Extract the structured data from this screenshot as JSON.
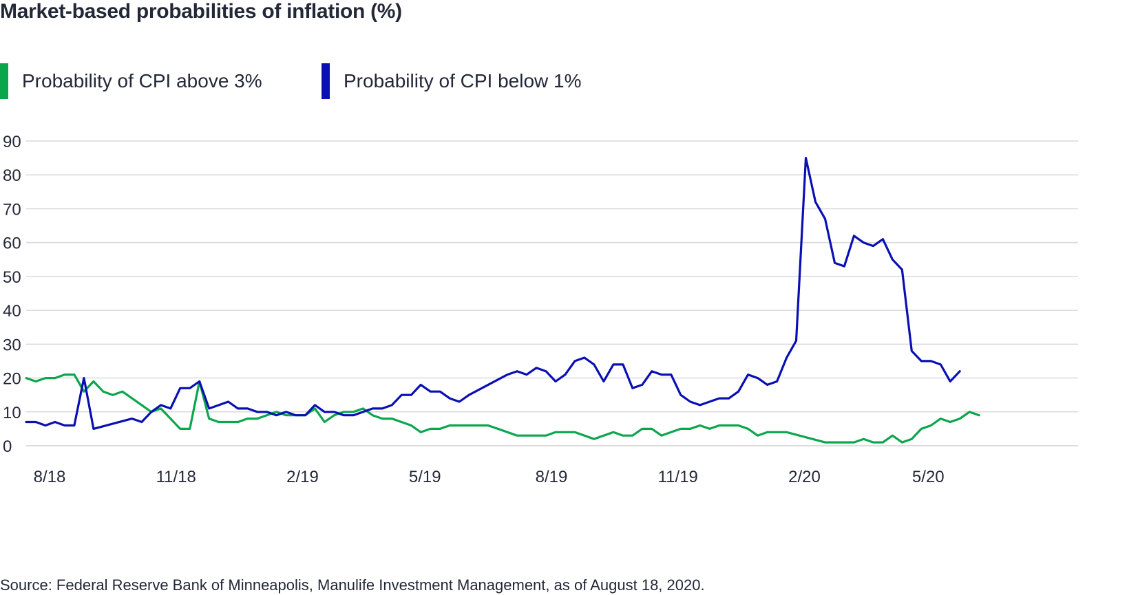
{
  "title": "Market-based probabilities of inflation (%)",
  "source": "Source: Federal Reserve Bank of Minneapolis, Manulife Investment Management, as of August 18, 2020.",
  "colors": {
    "above": "#0aa64c",
    "below": "#0a0fb3",
    "grid": "#d9d9d9",
    "text": "#232838"
  },
  "legend": [
    {
      "label": "Probability of CPI above 3%",
      "color": "#0aa64c"
    },
    {
      "label": "Probability of CPI below 1%",
      "color": "#0a0fb3"
    }
  ],
  "chart_data": {
    "type": "line",
    "title": "Market-based probabilities of inflation (%)",
    "xlabel": "",
    "ylabel": "",
    "ylim": [
      0,
      90
    ],
    "yticks": [
      0,
      10,
      20,
      30,
      40,
      50,
      60,
      70,
      80,
      90
    ],
    "xlim": [
      "2018-07-15",
      "2020-08-18"
    ],
    "xticks": [
      {
        "label": "8/18",
        "date": "2018-08-01"
      },
      {
        "label": "11/18",
        "date": "2018-11-01"
      },
      {
        "label": "2/19",
        "date": "2019-02-01"
      },
      {
        "label": "5/19",
        "date": "2019-05-01"
      },
      {
        "label": "8/19",
        "date": "2019-08-01"
      },
      {
        "label": "11/19",
        "date": "2019-11-01"
      },
      {
        "label": "2/20",
        "date": "2020-02-01"
      },
      {
        "label": "5/20",
        "date": "2020-05-01"
      }
    ],
    "grid": true,
    "legend_position": "top-left",
    "series": [
      {
        "name": "Probability of CPI above 3%",
        "color": "#0aa64c",
        "points": [
          [
            "2018-07-15",
            20
          ],
          [
            "2018-07-22",
            19
          ],
          [
            "2018-07-29",
            20
          ],
          [
            "2018-08-05",
            20
          ],
          [
            "2018-08-12",
            21
          ],
          [
            "2018-08-19",
            21
          ],
          [
            "2018-08-26",
            16
          ],
          [
            "2018-09-02",
            19
          ],
          [
            "2018-09-09",
            16
          ],
          [
            "2018-09-16",
            15
          ],
          [
            "2018-09-23",
            16
          ],
          [
            "2018-10-14",
            10
          ],
          [
            "2018-10-21",
            11
          ],
          [
            "2018-11-04",
            5
          ],
          [
            "2018-11-11",
            5
          ],
          [
            "2018-11-18",
            19
          ],
          [
            "2018-11-25",
            8
          ],
          [
            "2018-12-02",
            7
          ],
          [
            "2018-12-16",
            7
          ],
          [
            "2018-12-23",
            8
          ],
          [
            "2018-12-30",
            8
          ],
          [
            "2019-01-06",
            9
          ],
          [
            "2019-01-13",
            10
          ],
          [
            "2019-01-20",
            9
          ],
          [
            "2019-01-27",
            9
          ],
          [
            "2019-02-03",
            9
          ],
          [
            "2019-02-10",
            11
          ],
          [
            "2019-02-17",
            7
          ],
          [
            "2019-02-24",
            9
          ],
          [
            "2019-03-03",
            10
          ],
          [
            "2019-03-10",
            10
          ],
          [
            "2019-03-17",
            11
          ],
          [
            "2019-03-24",
            9
          ],
          [
            "2019-03-31",
            8
          ],
          [
            "2019-04-07",
            8
          ],
          [
            "2019-04-21",
            6
          ],
          [
            "2019-04-28",
            4
          ],
          [
            "2019-05-05",
            5
          ],
          [
            "2019-05-12",
            5
          ],
          [
            "2019-05-19",
            6
          ],
          [
            "2019-06-16",
            6
          ],
          [
            "2019-06-30",
            4
          ],
          [
            "2019-07-07",
            3
          ],
          [
            "2019-07-28",
            3
          ],
          [
            "2019-08-04",
            4
          ],
          [
            "2019-08-18",
            4
          ],
          [
            "2019-09-01",
            2
          ],
          [
            "2019-09-15",
            4
          ],
          [
            "2019-09-22",
            3
          ],
          [
            "2019-09-29",
            3
          ],
          [
            "2019-10-06",
            5
          ],
          [
            "2019-10-13",
            5
          ],
          [
            "2019-10-20",
            3
          ],
          [
            "2019-10-27",
            4
          ],
          [
            "2019-11-03",
            5
          ],
          [
            "2019-11-10",
            5
          ],
          [
            "2019-11-17",
            6
          ],
          [
            "2019-11-24",
            5
          ],
          [
            "2019-12-01",
            6
          ],
          [
            "2019-12-15",
            6
          ],
          [
            "2019-12-22",
            5
          ],
          [
            "2019-12-29",
            3
          ],
          [
            "2020-01-05",
            4
          ],
          [
            "2020-01-19",
            4
          ],
          [
            "2020-02-16",
            1
          ],
          [
            "2020-03-08",
            1
          ],
          [
            "2020-03-15",
            2
          ],
          [
            "2020-03-22",
            1
          ],
          [
            "2020-03-29",
            1
          ],
          [
            "2020-04-05",
            3
          ],
          [
            "2020-04-12",
            1
          ],
          [
            "2020-04-19",
            2
          ],
          [
            "2020-04-26",
            5
          ],
          [
            "2020-05-03",
            6
          ],
          [
            "2020-05-10",
            8
          ],
          [
            "2020-05-17",
            7
          ],
          [
            "2020-05-24",
            8
          ],
          [
            "2020-05-31",
            10
          ],
          [
            "2020-06-07",
            9
          ]
        ]
      },
      {
        "name": "Probability of CPI below 1%",
        "color": "#0a0fb3",
        "points": [
          [
            "2018-07-15",
            7
          ],
          [
            "2018-07-22",
            7
          ],
          [
            "2018-07-29",
            6
          ],
          [
            "2018-08-05",
            7
          ],
          [
            "2018-08-12",
            6
          ],
          [
            "2018-08-19",
            6
          ],
          [
            "2018-08-26",
            20
          ],
          [
            "2018-09-02",
            5
          ],
          [
            "2018-09-30",
            8
          ],
          [
            "2018-10-07",
            7
          ],
          [
            "2018-10-14",
            10
          ],
          [
            "2018-10-21",
            12
          ],
          [
            "2018-10-28",
            11
          ],
          [
            "2018-11-04",
            17
          ],
          [
            "2018-11-11",
            17
          ],
          [
            "2018-11-18",
            19
          ],
          [
            "2018-11-25",
            11
          ],
          [
            "2018-12-09",
            13
          ],
          [
            "2018-12-16",
            11
          ],
          [
            "2018-12-23",
            11
          ],
          [
            "2018-12-30",
            10
          ],
          [
            "2019-01-06",
            10
          ],
          [
            "2019-01-13",
            9
          ],
          [
            "2019-01-20",
            10
          ],
          [
            "2019-01-27",
            9
          ],
          [
            "2019-02-03",
            9
          ],
          [
            "2019-02-10",
            12
          ],
          [
            "2019-02-17",
            10
          ],
          [
            "2019-02-24",
            10
          ],
          [
            "2019-03-03",
            9
          ],
          [
            "2019-03-10",
            9
          ],
          [
            "2019-03-17",
            10
          ],
          [
            "2019-03-24",
            11
          ],
          [
            "2019-03-31",
            11
          ],
          [
            "2019-04-07",
            12
          ],
          [
            "2019-04-14",
            15
          ],
          [
            "2019-04-21",
            15
          ],
          [
            "2019-04-28",
            18
          ],
          [
            "2019-05-05",
            16
          ],
          [
            "2019-05-12",
            16
          ],
          [
            "2019-05-19",
            14
          ],
          [
            "2019-05-26",
            13
          ],
          [
            "2019-06-02",
            15
          ],
          [
            "2019-06-30",
            21
          ],
          [
            "2019-07-07",
            22
          ],
          [
            "2019-07-14",
            21
          ],
          [
            "2019-07-21",
            23
          ],
          [
            "2019-07-28",
            22
          ],
          [
            "2019-08-04",
            19
          ],
          [
            "2019-08-11",
            21
          ],
          [
            "2019-08-18",
            25
          ],
          [
            "2019-08-25",
            26
          ],
          [
            "2019-09-01",
            24
          ],
          [
            "2019-09-08",
            19
          ],
          [
            "2019-09-15",
            24
          ],
          [
            "2019-09-22",
            24
          ],
          [
            "2019-09-29",
            17
          ],
          [
            "2019-10-06",
            18
          ],
          [
            "2019-10-13",
            22
          ],
          [
            "2019-10-20",
            21
          ],
          [
            "2019-10-27",
            21
          ],
          [
            "2019-11-03",
            15
          ],
          [
            "2019-11-10",
            13
          ],
          [
            "2019-11-17",
            12
          ],
          [
            "2019-12-01",
            14
          ],
          [
            "2019-12-08",
            14
          ],
          [
            "2019-12-15",
            16
          ],
          [
            "2019-12-22",
            21
          ],
          [
            "2019-12-29",
            20
          ],
          [
            "2020-01-05",
            18
          ],
          [
            "2020-01-12",
            19
          ],
          [
            "2020-01-19",
            26
          ],
          [
            "2020-01-26",
            31
          ],
          [
            "2020-02-02",
            85
          ],
          [
            "2020-02-09",
            72
          ],
          [
            "2020-02-16",
            67
          ],
          [
            "2020-02-23",
            54
          ],
          [
            "2020-03-01",
            53
          ],
          [
            "2020-03-08",
            62
          ],
          [
            "2020-03-15",
            60
          ],
          [
            "2020-03-22",
            59
          ],
          [
            "2020-03-29",
            61
          ],
          [
            "2020-04-05",
            55
          ],
          [
            "2020-04-12",
            52
          ],
          [
            "2020-04-19",
            28
          ],
          [
            "2020-04-26",
            25
          ],
          [
            "2020-05-03",
            25
          ],
          [
            "2020-05-10",
            24
          ],
          [
            "2020-05-17",
            19
          ],
          [
            "2020-05-24",
            22
          ]
        ]
      }
    ]
  }
}
